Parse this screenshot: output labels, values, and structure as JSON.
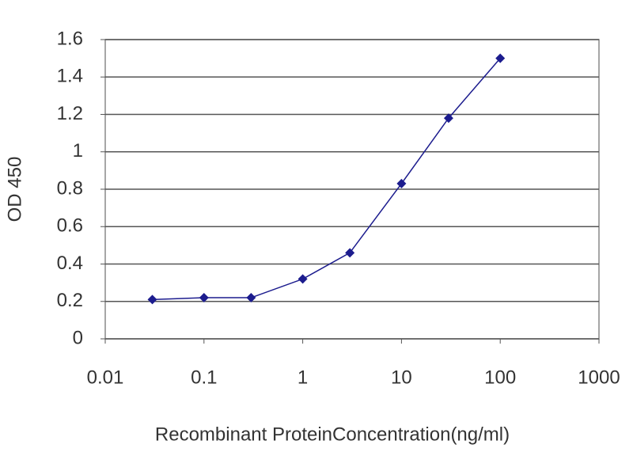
{
  "chart_data": {
    "type": "line",
    "x_label": "Recombinant ProteinConcentration(ng/ml)",
    "y_label": "OD 450",
    "x": [
      0.03,
      0.1,
      0.3,
      1,
      3,
      10,
      30,
      100
    ],
    "values": [
      0.21,
      0.22,
      0.22,
      0.32,
      0.46,
      0.83,
      1.18,
      1.5
    ],
    "color": "#1c1c8e",
    "x_log": true,
    "xlim": [
      0.01,
      1000
    ],
    "xticks": [
      0.01,
      0.1,
      1,
      10,
      100,
      1000
    ],
    "ylim": [
      0,
      1.6
    ],
    "yticks": [
      0,
      0.2,
      0.4,
      0.6,
      0.8,
      1,
      1.2,
      1.4,
      1.6
    ],
    "grid": true
  }
}
